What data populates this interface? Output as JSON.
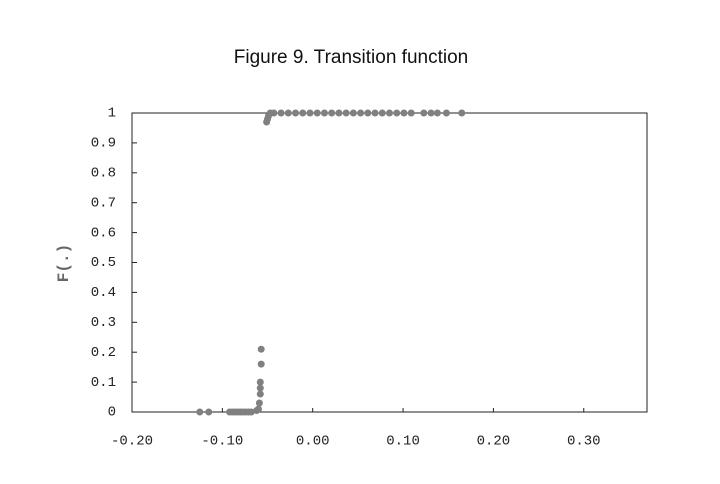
{
  "chart_data": {
    "type": "scatter",
    "title": "Figure 9. Transition function",
    "y_label": "F(.)",
    "color": "#808080",
    "x": [
      -0.125,
      -0.115,
      -0.092,
      -0.089,
      -0.086,
      -0.083,
      -0.08,
      -0.077,
      -0.074,
      -0.071,
      -0.068,
      -0.062,
      -0.06,
      -0.059,
      -0.058,
      -0.058,
      -0.058,
      -0.057,
      -0.057,
      -0.051,
      -0.05,
      -0.049,
      -0.047,
      -0.043,
      -0.035,
      -0.027,
      -0.019,
      -0.011,
      -0.003,
      0.005,
      0.013,
      0.021,
      0.029,
      0.037,
      0.045,
      0.053,
      0.061,
      0.069,
      0.077,
      0.085,
      0.093,
      0.101,
      0.109,
      0.123,
      0.131,
      0.138,
      0.148,
      0.165
    ],
    "values": [
      0,
      0,
      0,
      0,
      0,
      0,
      0,
      0,
      0,
      0,
      0,
      0.005,
      0.01,
      0.03,
      0.06,
      0.08,
      0.1,
      0.16,
      0.21,
      0.97,
      0.98,
      0.99,
      1,
      1,
      1,
      1,
      1,
      1,
      1,
      1,
      1,
      1,
      1,
      1,
      1,
      1,
      1,
      1,
      1,
      1,
      1,
      1,
      1,
      1,
      1,
      1,
      1,
      1
    ],
    "xlim": [
      -0.2,
      0.37
    ],
    "xticks": [
      {
        "value": -0.2,
        "label": "-0.20"
      },
      {
        "value": -0.1,
        "label": "-0.10"
      },
      {
        "value": 0,
        "label": "0.00"
      },
      {
        "value": 0.1,
        "label": "0.10"
      },
      {
        "value": 0.2,
        "label": "0.20"
      },
      {
        "value": 0.3,
        "label": "0.30"
      }
    ],
    "ylim": [
      0,
      1
    ],
    "yticks": [
      0,
      0.1,
      0.2,
      0.3,
      0.4,
      0.5,
      0.6,
      0.7,
      0.8,
      0.9,
      1
    ],
    "grid": false
  }
}
